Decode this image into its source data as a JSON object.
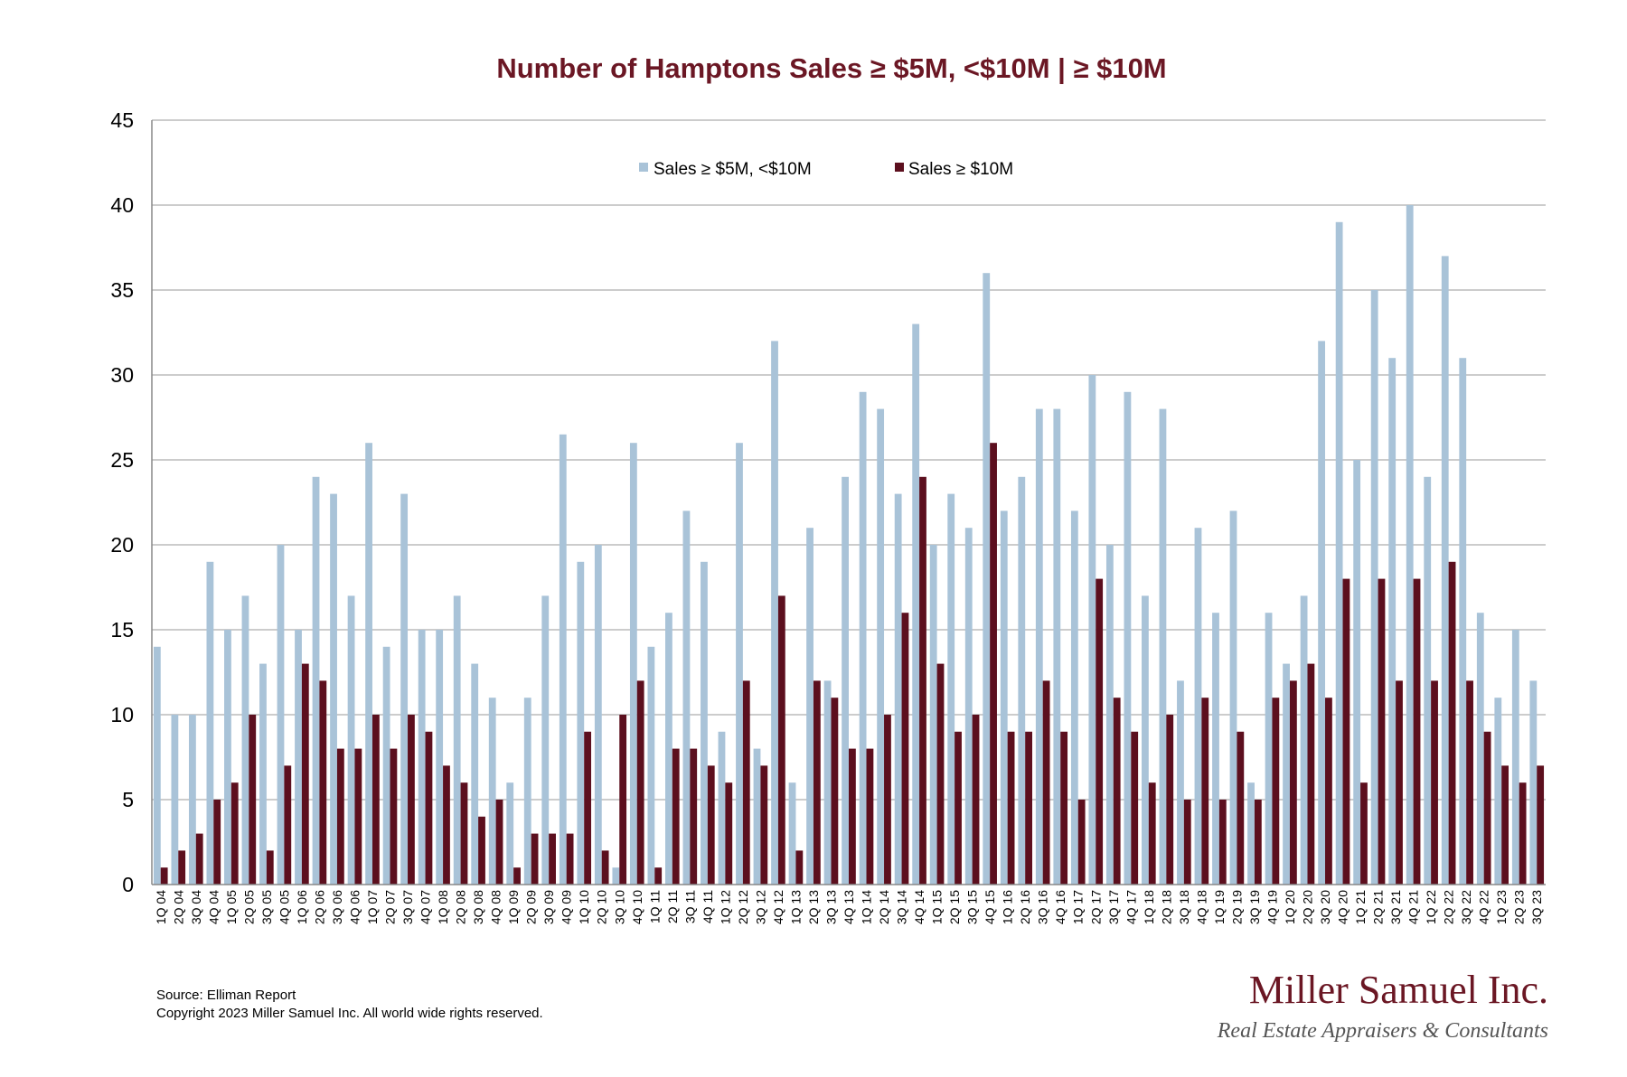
{
  "colors": {
    "small": "#a9c3d8",
    "big": "#5c0f1e",
    "title": "#6b1724",
    "grid": "#9a9a9a"
  },
  "footer": {
    "source": "Source: Elliman Report",
    "copyright": "Copyright 2023 Miller Samuel Inc.  All world wide rights reserved."
  },
  "brand": {
    "name": "Miller Samuel Inc.",
    "tagline": "Real Estate Appraisers & Consultants"
  },
  "chart_data": {
    "type": "bar",
    "title": "Number of Hamptons Sales ≥ $5M, <$10M | ≥ $10M",
    "ylim": [
      0,
      45
    ],
    "yticks": [
      0,
      5,
      10,
      15,
      20,
      25,
      30,
      35,
      40,
      45
    ],
    "grid": true,
    "legend_position": "top-center",
    "categories": [
      "1Q 04",
      "2Q 04",
      "3Q 04",
      "4Q 04",
      "1Q 05",
      "2Q 05",
      "3Q 05",
      "4Q 05",
      "1Q 06",
      "2Q 06",
      "3Q 06",
      "4Q 06",
      "1Q 07",
      "2Q 07",
      "3Q 07",
      "4Q 07",
      "1Q 08",
      "2Q 08",
      "3Q 08",
      "4Q 08",
      "1Q 09",
      "2Q 09",
      "3Q 09",
      "4Q 09",
      "1Q 10",
      "2Q 10",
      "3Q 10",
      "4Q 10",
      "1Q 11",
      "2Q 11",
      "3Q 11",
      "4Q 11",
      "1Q 12",
      "2Q 12",
      "3Q 12",
      "4Q 12",
      "1Q 13",
      "2Q 13",
      "3Q 13",
      "4Q 13",
      "1Q 14",
      "2Q 14",
      "3Q 14",
      "4Q 14",
      "1Q 15",
      "2Q 15",
      "3Q 15",
      "4Q 15",
      "1Q 16",
      "2Q 16",
      "3Q 16",
      "4Q 16",
      "1Q 17",
      "2Q 17",
      "3Q 17",
      "4Q 17",
      "1Q 18",
      "2Q 18",
      "3Q 18",
      "4Q 18",
      "1Q 19",
      "2Q 19",
      "3Q 19",
      "4Q 19",
      "1Q 20",
      "2Q 20",
      "3Q 20",
      "4Q 20",
      "1Q 21",
      "2Q 21",
      "3Q 21",
      "4Q 21",
      "1Q 22",
      "2Q 22",
      "3Q 22",
      "4Q 22",
      "1Q 23",
      "2Q 23",
      "3Q 23"
    ],
    "series": [
      {
        "name": "Sales ≥ $5M, <$10M",
        "values": [
          14,
          10,
          10,
          19,
          15,
          17,
          13,
          20,
          15,
          24,
          23,
          17,
          26,
          14,
          23,
          15,
          15,
          17,
          13,
          11,
          6,
          11,
          17,
          26.5,
          19,
          20,
          1,
          26,
          14,
          16,
          22,
          19,
          9,
          26,
          8,
          32,
          6,
          21,
          12,
          24,
          29,
          28,
          23,
          33,
          20,
          23,
          21,
          36,
          22,
          24,
          28,
          28,
          22,
          30,
          20,
          29,
          17,
          28,
          12,
          21,
          16,
          22,
          6,
          16,
          13,
          17,
          32,
          39,
          25,
          35,
          31,
          40,
          24,
          37,
          31,
          16,
          11,
          15,
          12
        ]
      },
      {
        "name": "Sales ≥ $10M",
        "values": [
          1,
          2,
          3,
          5,
          6,
          10,
          2,
          7,
          13,
          12,
          8,
          8,
          10,
          8,
          10,
          9,
          7,
          6,
          4,
          5,
          1,
          3,
          3,
          3,
          9,
          2,
          10,
          12,
          1,
          8,
          8,
          7,
          6,
          12,
          7,
          17,
          2,
          12,
          11,
          8,
          8,
          10,
          16,
          24,
          13,
          9,
          10,
          26,
          9,
          9,
          12,
          9,
          5,
          18,
          11,
          9,
          6,
          10,
          5,
          11,
          5,
          9,
          5,
          11,
          12,
          13,
          11,
          18,
          6,
          18,
          12,
          18,
          12,
          19,
          12,
          9,
          7,
          6,
          7
        ]
      }
    ]
  }
}
